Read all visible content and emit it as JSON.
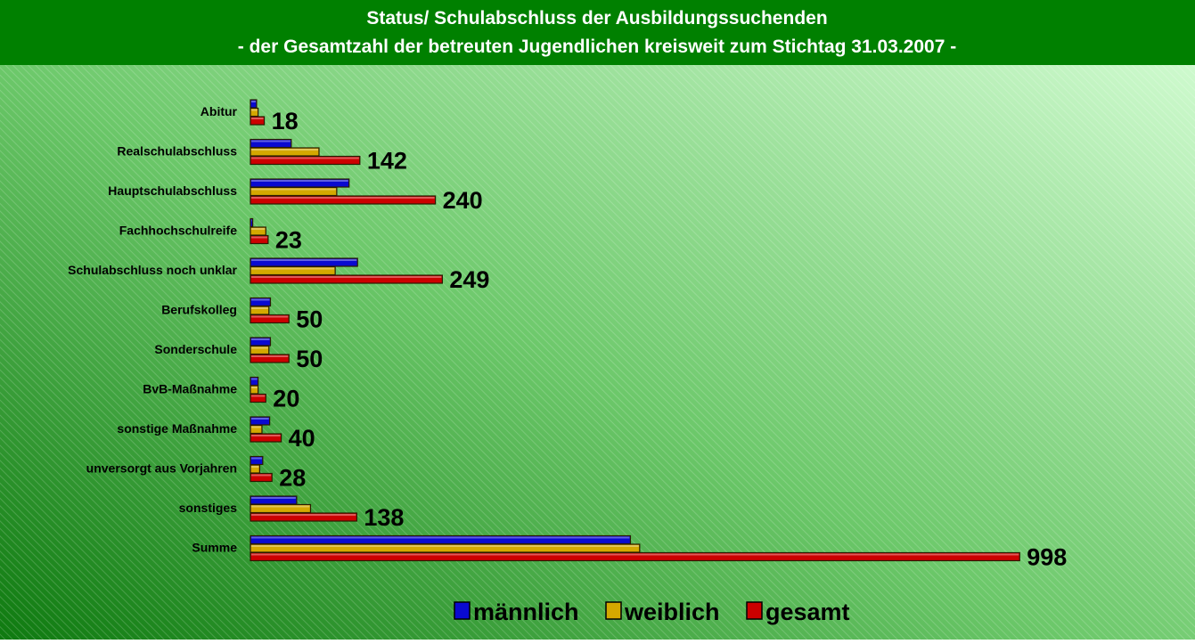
{
  "chart_data": {
    "type": "bar",
    "orientation": "horizontal",
    "title": "Status/ Schulabschluss der Ausbildungssuchenden",
    "subtitle": "- der Gesamtzahl der betreuten Jugendlichen kreisweit zum Stichtag 31.03.2007  -",
    "categories": [
      "Abitur",
      "Realschulabschluss",
      "Hauptschulabschluss",
      "Fachhochschulreife",
      "Schulabschluss noch unklar",
      "Berufskolleg",
      "Sonderschule",
      "BvB-Maßnahme",
      "sonstige Maßnahme",
      "unversorgt aus Vorjahren",
      "sonstiges",
      "Summe"
    ],
    "series": [
      {
        "name": "männlich",
        "color": "#0a0ad0",
        "values": [
          8,
          53,
          128,
          3,
          139,
          26,
          26,
          10,
          25,
          16,
          60,
          493
        ]
      },
      {
        "name": "weiblich",
        "color": "#d4a800",
        "values": [
          10,
          89,
          112,
          20,
          110,
          24,
          24,
          10,
          15,
          12,
          78,
          505
        ]
      },
      {
        "name": "gesamt",
        "color": "#cc0000",
        "values": [
          18,
          142,
          240,
          23,
          249,
          50,
          50,
          20,
          40,
          28,
          138,
          998
        ]
      }
    ],
    "labeled_series": 2,
    "xlim": [
      0,
      1000
    ],
    "legend": "bottom"
  }
}
